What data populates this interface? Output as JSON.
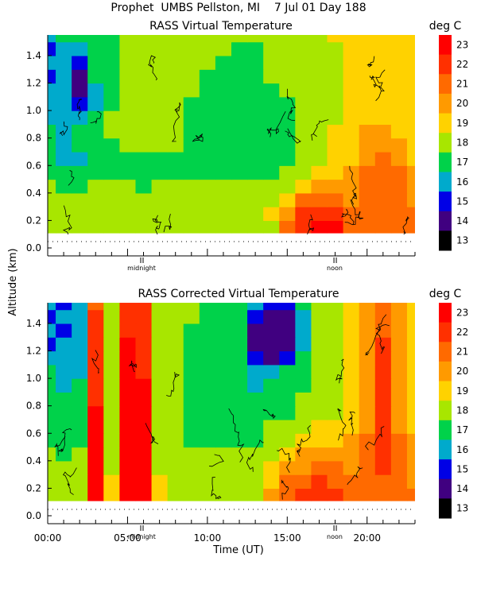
{
  "header": {
    "line1": "Prophet  UMBS Pellston, MI    7 Jul 01 Day 188"
  },
  "ylabel": "Altitude (km)",
  "xlabel": "Time (UT)",
  "markers": {
    "midnight": "midnight",
    "noon": "noon"
  },
  "colorscale": {
    "unit": "deg C",
    "labels": [
      "23",
      "22",
      "21",
      "20",
      "19",
      "18",
      "17",
      "16",
      "15",
      "14",
      "13"
    ],
    "colors": [
      "#ff0000",
      "#ff3000",
      "#ff6a00",
      "#ff9a00",
      "#ffd200",
      "#a8e600",
      "#00d24a",
      "#00aacc",
      "#0000e6",
      "#400080",
      "#000000"
    ]
  },
  "chart_data": [
    {
      "type": "heatmap",
      "title": "RASS Virtual Temperature",
      "xlabel": "",
      "ylabel": "Altitude (km)",
      "ylim": [
        0.0,
        1.55
      ],
      "yticks": [
        "0.0",
        "0.2",
        "0.4",
        "0.6",
        "0.8",
        "1.0",
        "1.2",
        "1.4"
      ],
      "xlim_hours": [
        0,
        23
      ],
      "zlim": [
        13,
        23
      ],
      "unit": "deg C",
      "x_hours": [
        0,
        1,
        2,
        3,
        4,
        5,
        6,
        7,
        8,
        9,
        10,
        11,
        12,
        13,
        14,
        15,
        16,
        17,
        18,
        19,
        20,
        21,
        22,
        23
      ],
      "y_km": [
        0.15,
        0.25,
        0.35,
        0.45,
        0.55,
        0.65,
        0.75,
        0.85,
        0.95,
        1.05,
        1.15,
        1.25,
        1.35,
        1.45,
        1.55
      ],
      "z": [
        [
          18.5,
          18.5,
          18.5,
          18.5,
          18.5,
          18.5,
          18.5,
          18.5,
          18.5,
          18.5,
          18.5,
          18.5,
          18.5,
          18.5,
          18.5,
          21.0,
          22.5,
          23.0,
          23.0,
          21.5,
          21.0,
          21.5,
          21.5,
          21.0
        ],
        [
          18.5,
          18.5,
          18.5,
          18.5,
          18.5,
          18.5,
          18.5,
          18.5,
          18.5,
          18.5,
          18.5,
          18.5,
          18.5,
          18.5,
          19.5,
          20.5,
          22.0,
          22.5,
          22.0,
          21.0,
          21.0,
          21.5,
          21.5,
          21.0
        ],
        [
          18.0,
          18.0,
          18.0,
          18.0,
          18.0,
          18.0,
          18.0,
          18.0,
          18.0,
          18.0,
          18.0,
          18.0,
          18.0,
          18.0,
          18.5,
          19.5,
          21.0,
          21.5,
          21.0,
          20.5,
          21.0,
          21.5,
          21.5,
          20.5
        ],
        [
          18.0,
          17.5,
          17.5,
          18.0,
          18.0,
          18.0,
          17.5,
          18.0,
          18.0,
          18.0,
          18.0,
          18.0,
          18.0,
          18.0,
          18.0,
          18.5,
          19.5,
          20.5,
          20.0,
          20.0,
          21.0,
          21.5,
          21.0,
          20.5
        ],
        [
          17.5,
          17.0,
          17.5,
          17.5,
          17.5,
          17.5,
          17.5,
          17.5,
          17.5,
          17.5,
          17.5,
          17.5,
          17.5,
          17.5,
          17.5,
          18.0,
          18.5,
          19.0,
          19.5,
          20.0,
          21.0,
          21.0,
          21.0,
          20.0
        ],
        [
          17.0,
          16.5,
          16.5,
          17.0,
          17.5,
          17.5,
          17.0,
          17.5,
          17.5,
          17.5,
          17.5,
          17.5,
          17.5,
          17.5,
          17.5,
          17.5,
          18.0,
          18.5,
          19.0,
          19.5,
          20.5,
          21.0,
          20.5,
          19.5
        ],
        [
          17.0,
          16.5,
          17.0,
          17.5,
          17.5,
          18.0,
          18.0,
          18.0,
          18.0,
          17.5,
          17.5,
          17.0,
          17.5,
          17.5,
          17.5,
          17.5,
          18.0,
          18.5,
          19.0,
          19.5,
          20.0,
          20.5,
          20.0,
          19.5
        ],
        [
          17.0,
          16.5,
          17.0,
          17.5,
          18.0,
          18.0,
          18.0,
          18.0,
          18.0,
          17.5,
          17.0,
          17.0,
          17.0,
          17.5,
          17.5,
          17.5,
          18.0,
          18.5,
          19.0,
          19.5,
          20.0,
          20.0,
          19.5,
          19.0
        ],
        [
          16.5,
          16.0,
          16.0,
          17.0,
          18.0,
          18.0,
          18.0,
          18.0,
          18.0,
          17.5,
          17.0,
          17.0,
          17.0,
          17.0,
          17.5,
          17.5,
          18.0,
          18.0,
          18.5,
          19.0,
          19.5,
          19.5,
          19.5,
          19.0
        ],
        [
          16.5,
          16.0,
          15.0,
          16.5,
          17.5,
          18.0,
          18.0,
          18.0,
          18.0,
          17.5,
          17.5,
          17.0,
          17.0,
          17.0,
          17.5,
          17.5,
          18.0,
          18.0,
          18.5,
          19.0,
          19.5,
          19.5,
          19.0,
          19.0
        ],
        [
          16.0,
          16.0,
          14.5,
          16.5,
          17.5,
          18.0,
          18.0,
          18.0,
          18.0,
          18.0,
          17.5,
          17.5,
          17.0,
          17.5,
          17.5,
          18.0,
          18.0,
          18.0,
          18.5,
          19.0,
          19.5,
          19.5,
          19.0,
          19.0
        ],
        [
          15.0,
          16.0,
          14.5,
          17.0,
          17.5,
          18.0,
          18.0,
          18.0,
          18.0,
          18.0,
          17.5,
          17.5,
          17.5,
          17.5,
          18.0,
          18.0,
          18.0,
          18.0,
          18.5,
          19.0,
          19.5,
          19.5,
          19.0,
          19.0
        ],
        [
          16.0,
          16.5,
          15.5,
          17.0,
          17.5,
          18.0,
          18.0,
          18.0,
          18.0,
          18.0,
          18.0,
          17.5,
          17.5,
          17.5,
          18.0,
          18.0,
          18.0,
          18.0,
          18.5,
          19.0,
          19.5,
          19.5,
          19.0,
          19.0
        ],
        [
          15.5,
          16.5,
          16.5,
          17.5,
          17.5,
          18.0,
          18.0,
          18.0,
          18.0,
          18.0,
          18.0,
          18.0,
          17.5,
          17.5,
          18.0,
          18.0,
          18.0,
          18.0,
          18.5,
          19.0,
          19.5,
          19.5,
          19.0,
          19.0
        ],
        [
          16.5,
          17.0,
          17.0,
          17.5,
          17.5,
          18.0,
          18.0,
          18.0,
          18.0,
          18.0,
          18.0,
          18.0,
          18.0,
          18.0,
          18.0,
          18.0,
          18.0,
          18.5,
          19.0,
          19.5,
          19.5,
          19.5,
          19.0,
          19.0
        ]
      ]
    },
    {
      "type": "heatmap",
      "title": "RASS Corrected Virtual Temperature",
      "xlabel": "Time (UT)",
      "ylabel": "Altitude (km)",
      "ylim": [
        0.0,
        1.55
      ],
      "yticks": [
        "0.0",
        "0.2",
        "0.4",
        "0.6",
        "0.8",
        "1.0",
        "1.2",
        "1.4"
      ],
      "xticks": [
        "00:00",
        "05:00",
        "10:00",
        "15:00",
        "20:00"
      ],
      "xlim_hours": [
        0,
        23
      ],
      "zlim": [
        13,
        23
      ],
      "unit": "deg C",
      "x_hours": [
        0,
        1,
        2,
        3,
        4,
        5,
        6,
        7,
        8,
        9,
        10,
        11,
        12,
        13,
        14,
        15,
        16,
        17,
        18,
        19,
        20,
        21,
        22,
        23
      ],
      "y_km": [
        0.15,
        0.25,
        0.35,
        0.45,
        0.55,
        0.65,
        0.75,
        0.85,
        0.95,
        1.05,
        1.15,
        1.25,
        1.35,
        1.45,
        1.55
      ],
      "z": [
        [
          18.5,
          18.5,
          18.5,
          23.0,
          19.0,
          23.0,
          23.0,
          19.0,
          18.5,
          18.5,
          18.5,
          18.5,
          18.5,
          18.5,
          20.0,
          21.5,
          22.0,
          22.5,
          22.0,
          21.0,
          21.0,
          21.5,
          21.0,
          21.0
        ],
        [
          18.5,
          18.0,
          18.5,
          23.0,
          19.0,
          23.0,
          23.0,
          19.0,
          18.5,
          18.5,
          18.5,
          18.5,
          18.5,
          18.5,
          19.5,
          21.0,
          21.5,
          22.0,
          21.5,
          21.0,
          21.0,
          21.5,
          21.0,
          20.5
        ],
        [
          18.0,
          18.0,
          18.0,
          23.0,
          18.5,
          23.0,
          23.0,
          18.5,
          18.0,
          18.0,
          18.0,
          18.0,
          18.0,
          18.0,
          19.0,
          20.0,
          20.5,
          21.0,
          21.0,
          20.5,
          21.0,
          22.0,
          21.0,
          20.5
        ],
        [
          18.0,
          17.5,
          18.0,
          23.0,
          18.5,
          23.0,
          23.0,
          18.5,
          18.0,
          18.0,
          18.0,
          18.0,
          18.0,
          18.0,
          18.5,
          19.5,
          20.0,
          20.0,
          20.0,
          20.0,
          21.0,
          22.5,
          21.0,
          20.0
        ],
        [
          17.5,
          17.5,
          17.5,
          23.0,
          18.0,
          23.0,
          23.0,
          18.0,
          18.0,
          17.5,
          17.5,
          17.5,
          17.5,
          17.5,
          18.0,
          18.5,
          19.0,
          19.5,
          19.5,
          20.0,
          21.0,
          22.5,
          21.0,
          20.0
        ],
        [
          17.5,
          17.0,
          17.5,
          23.0,
          18.0,
          23.0,
          23.0,
          18.0,
          18.0,
          17.5,
          17.5,
          17.5,
          17.5,
          17.5,
          18.0,
          18.0,
          18.5,
          19.0,
          19.0,
          19.5,
          20.5,
          22.5,
          20.5,
          19.5
        ],
        [
          17.5,
          17.0,
          17.5,
          23.0,
          18.0,
          23.0,
          23.0,
          18.0,
          18.0,
          17.5,
          17.5,
          17.0,
          17.5,
          17.5,
          17.5,
          17.5,
          18.0,
          18.5,
          18.5,
          19.0,
          20.5,
          22.5,
          20.5,
          19.5
        ],
        [
          17.5,
          17.0,
          17.5,
          22.5,
          18.0,
          23.0,
          23.0,
          18.0,
          18.0,
          17.5,
          17.5,
          17.0,
          17.0,
          17.5,
          17.5,
          17.5,
          18.0,
          18.0,
          18.5,
          19.0,
          20.0,
          22.5,
          20.0,
          19.5
        ],
        [
          17.0,
          16.5,
          17.0,
          22.5,
          18.0,
          23.0,
          23.0,
          18.0,
          18.0,
          17.5,
          17.0,
          17.0,
          17.0,
          16.5,
          17.0,
          17.5,
          17.5,
          18.0,
          18.5,
          19.0,
          20.0,
          22.5,
          20.0,
          19.0
        ],
        [
          17.0,
          16.5,
          16.5,
          22.0,
          18.0,
          23.0,
          22.5,
          18.0,
          18.0,
          17.5,
          17.0,
          17.0,
          17.0,
          16.0,
          16.0,
          17.0,
          17.5,
          18.0,
          18.5,
          19.0,
          20.0,
          22.5,
          20.0,
          19.0
        ],
        [
          16.5,
          16.0,
          16.0,
          22.0,
          18.0,
          23.0,
          22.5,
          18.0,
          18.0,
          17.5,
          17.5,
          17.0,
          17.0,
          15.5,
          14.5,
          15.0,
          17.0,
          18.0,
          18.5,
          19.0,
          20.0,
          22.5,
          20.0,
          19.0
        ],
        [
          15.0,
          16.0,
          16.0,
          22.0,
          18.5,
          23.0,
          22.5,
          18.0,
          18.0,
          17.5,
          17.5,
          17.5,
          17.0,
          14.5,
          14.0,
          14.5,
          16.5,
          18.0,
          18.5,
          19.0,
          20.0,
          22.0,
          20.0,
          19.0
        ],
        [
          16.0,
          15.5,
          16.0,
          22.0,
          18.5,
          22.5,
          22.0,
          18.0,
          18.0,
          17.5,
          17.5,
          17.5,
          17.0,
          14.5,
          14.0,
          14.0,
          16.0,
          18.0,
          18.5,
          19.0,
          20.0,
          21.5,
          20.0,
          19.0
        ],
        [
          15.5,
          16.0,
          16.5,
          22.0,
          18.5,
          22.5,
          22.0,
          18.0,
          18.0,
          18.0,
          17.5,
          17.5,
          17.0,
          15.0,
          14.5,
          14.5,
          16.5,
          18.0,
          18.5,
          19.0,
          20.0,
          21.0,
          20.0,
          19.0
        ],
        [
          16.0,
          15.5,
          16.0,
          21.5,
          18.5,
          22.5,
          22.0,
          18.0,
          18.0,
          18.0,
          17.5,
          17.5,
          17.5,
          16.0,
          15.5,
          15.5,
          17.0,
          18.0,
          18.5,
          19.0,
          20.0,
          21.0,
          20.0,
          19.0
        ]
      ]
    }
  ]
}
